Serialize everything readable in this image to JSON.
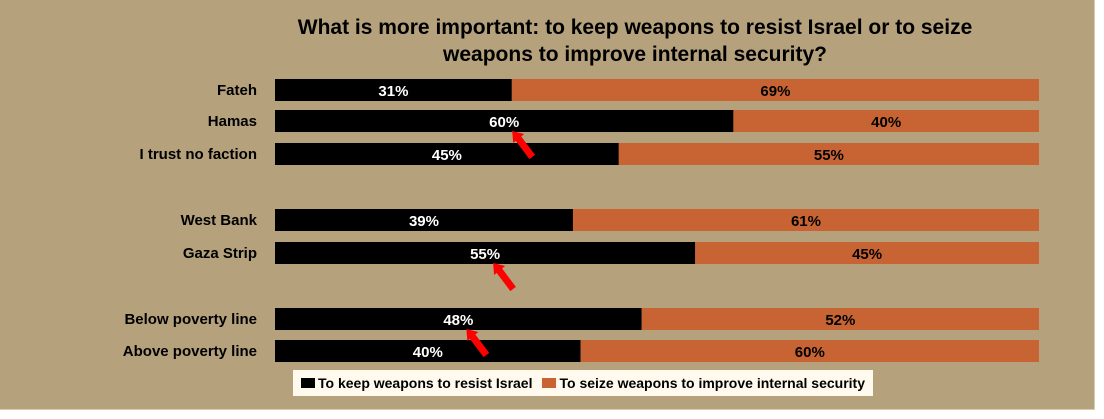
{
  "chart_data": {
    "type": "bar",
    "orientation": "horizontal",
    "stacked": true,
    "title": "What is more important: to keep weapons to resist Israel or to seize weapons to improve internal security?",
    "categories": [
      "Fateh",
      "Hamas",
      "I trust no faction",
      "West Bank",
      "Gaza Strip",
      "Below poverty line",
      "Above poverty line"
    ],
    "groups": [
      [
        0,
        1,
        2
      ],
      [
        3,
        4
      ],
      [
        5,
        6
      ]
    ],
    "series": [
      {
        "name": "To keep weapons to resist Israel",
        "values": [
          31,
          60,
          45,
          39,
          55,
          48,
          40
        ],
        "labels": [
          "31%",
          "60%",
          "45%",
          "39%",
          "55%",
          "48%",
          "40%"
        ],
        "color": "#000000",
        "label_color": "#ffffff"
      },
      {
        "name": "To seize weapons to improve internal security",
        "values": [
          69,
          40,
          55,
          61,
          45,
          52,
          60
        ],
        "labels": [
          "69%",
          "40%",
          "55%",
          "61%",
          "45%",
          "52%",
          "60%"
        ],
        "color": "#c86433",
        "label_color": "#000000"
      }
    ],
    "xlim": [
      0,
      100
    ],
    "grid": false,
    "legend_position": "bottom",
    "highlight_arrow_color": "#ff0000",
    "highlight_arrows_on": [
      "Hamas",
      "Gaza Strip",
      "Below poverty line"
    ]
  }
}
